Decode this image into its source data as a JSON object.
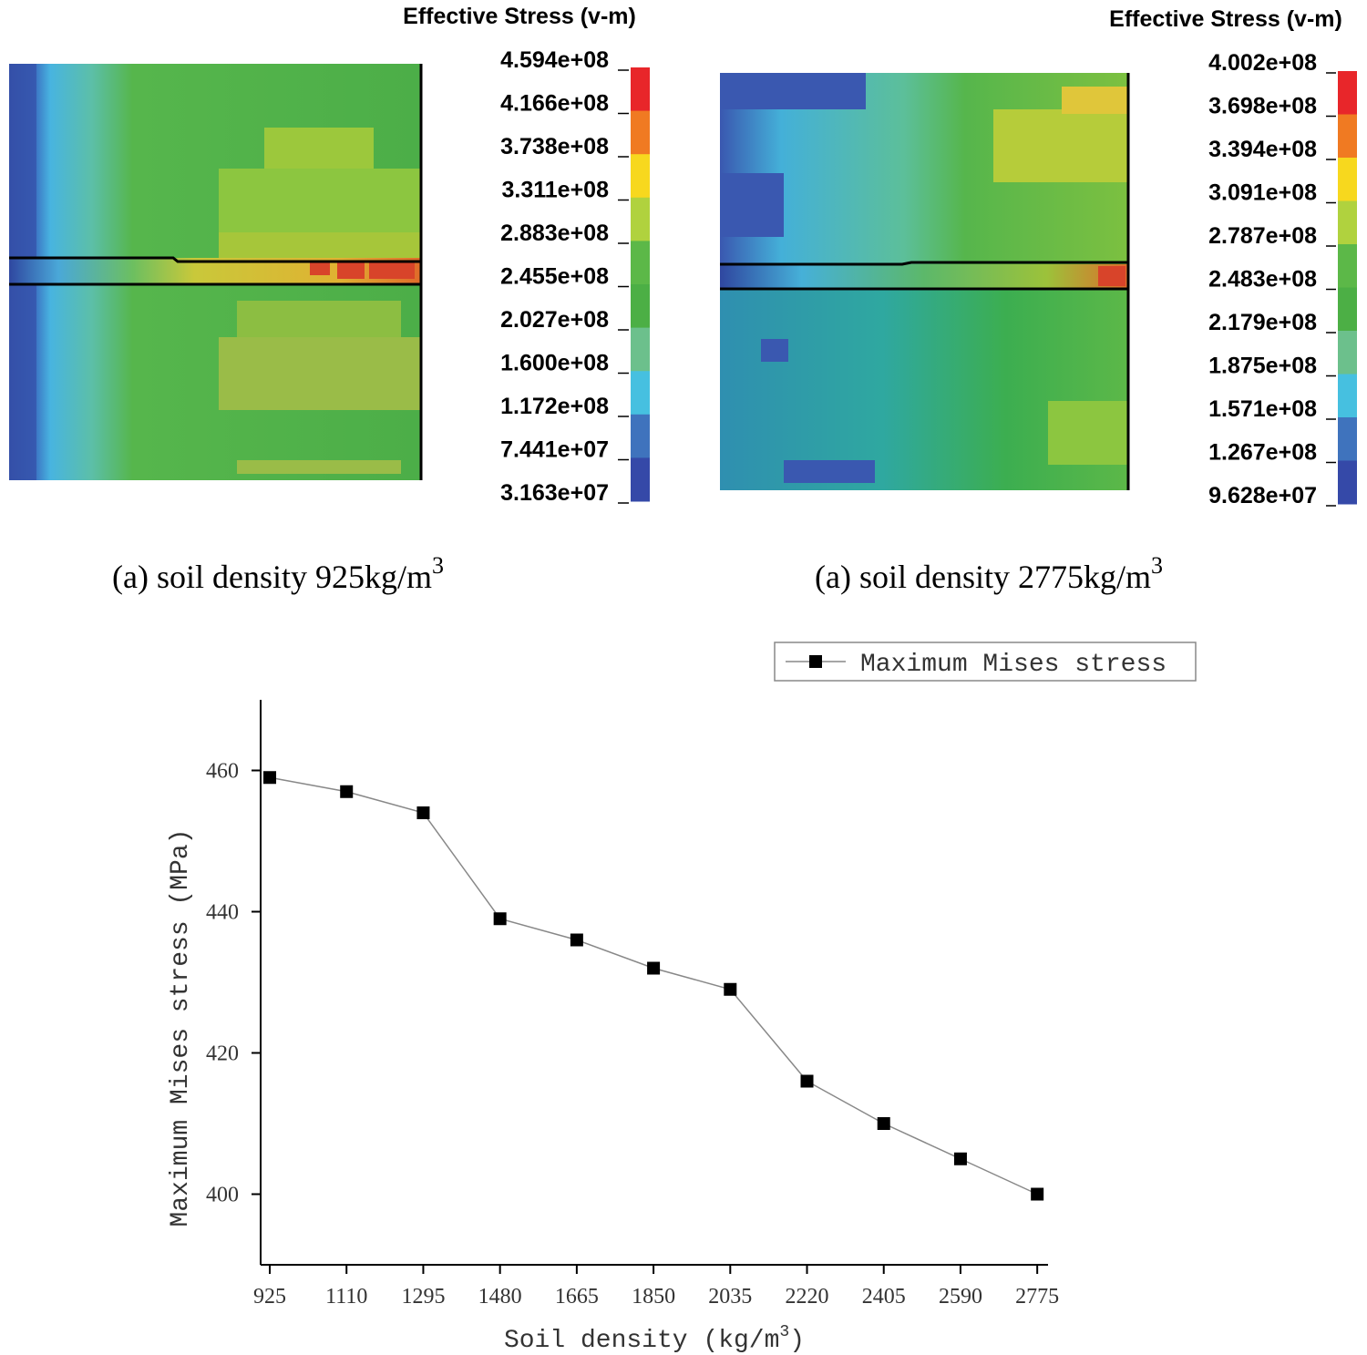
{
  "panels": [
    {
      "legend_title": "Effective Stress (v-m)",
      "levels": [
        "4.594e+08",
        "4.166e+08",
        "3.738e+08",
        "3.311e+08",
        "2.883e+08",
        "2.455e+08",
        "2.027e+08",
        "1.600e+08",
        "1.172e+08",
        "7.441e+07",
        "3.163e+07"
      ],
      "colors": [
        "#e8262a",
        "#f07a22",
        "#f7d81e",
        "#b0d23e",
        "#5cb848",
        "#4caf45",
        "#6cc08c",
        "#46c0e0",
        "#3f73bd",
        "#3549a8"
      ],
      "caption": {
        "text": "(a) soil density 925kg/m",
        "sup": "3"
      }
    },
    {
      "legend_title": "Effective Stress (v-m)",
      "levels": [
        "4.002e+08",
        "3.698e+08",
        "3.394e+08",
        "3.091e+08",
        "2.787e+08",
        "2.483e+08",
        "2.179e+08",
        "1.875e+08",
        "1.571e+08",
        "1.267e+08",
        "9.628e+07"
      ],
      "colors": [
        "#e8262a",
        "#f07a22",
        "#f7d81e",
        "#b0d23e",
        "#5cb848",
        "#4caf45",
        "#6cc08c",
        "#46c0e0",
        "#3f73bd",
        "#3549a8"
      ],
      "caption": {
        "text": "(a) soil density 2775kg/m",
        "sup": "3"
      }
    }
  ],
  "chart_data": {
    "type": "line",
    "x": [
      925,
      1110,
      1295,
      1480,
      1665,
      1850,
      2035,
      2220,
      2405,
      2590,
      2775
    ],
    "series": [
      {
        "name": "Maximum Mises stress",
        "color": "#888888",
        "marker_color": "#000000",
        "values": [
          459,
          457,
          454,
          439,
          436,
          432,
          429,
          416,
          410,
          405,
          400
        ]
      }
    ],
    "xlim": [
      903,
      2801
    ],
    "xticks": [
      925,
      1110,
      1295,
      1480,
      1665,
      1850,
      2035,
      2220,
      2405,
      2590,
      2775
    ],
    "ylim": [
      390,
      470
    ],
    "yticks": [
      400,
      420,
      440,
      460
    ],
    "ylabel": "Maximum Mises stress (MPa)",
    "xlabel": {
      "text": "Soil density (kg/m",
      "sup": "3",
      "tail": ")"
    },
    "legend": "upper right"
  }
}
